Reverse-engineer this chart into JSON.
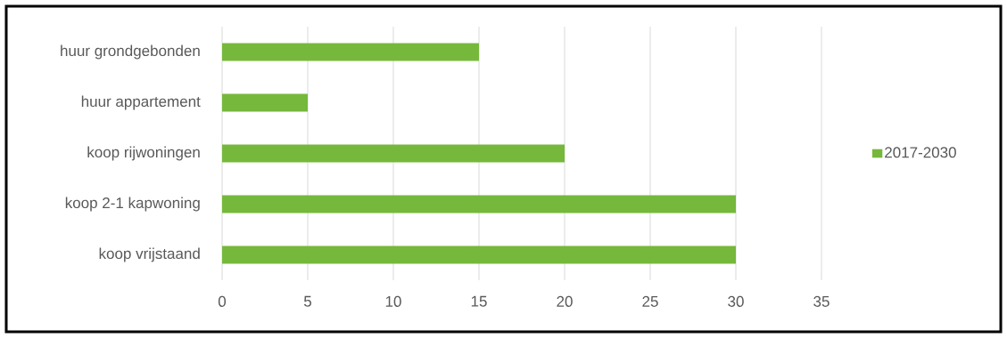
{
  "chart_data": {
    "type": "bar",
    "orientation": "horizontal",
    "categories": [
      "huur grondgebonden",
      "huur appartement",
      "koop rijwoningen",
      "koop 2-1 kapwoning",
      "koop vrijstaand"
    ],
    "series": [
      {
        "name": "2017-2030",
        "color": "#76b83b",
        "values": [
          15,
          5,
          20,
          30,
          30
        ]
      }
    ],
    "xlim": [
      0,
      35
    ],
    "xticks": [
      0,
      5,
      10,
      15,
      20,
      25,
      30,
      35
    ],
    "grid": "x",
    "legend": "right"
  }
}
